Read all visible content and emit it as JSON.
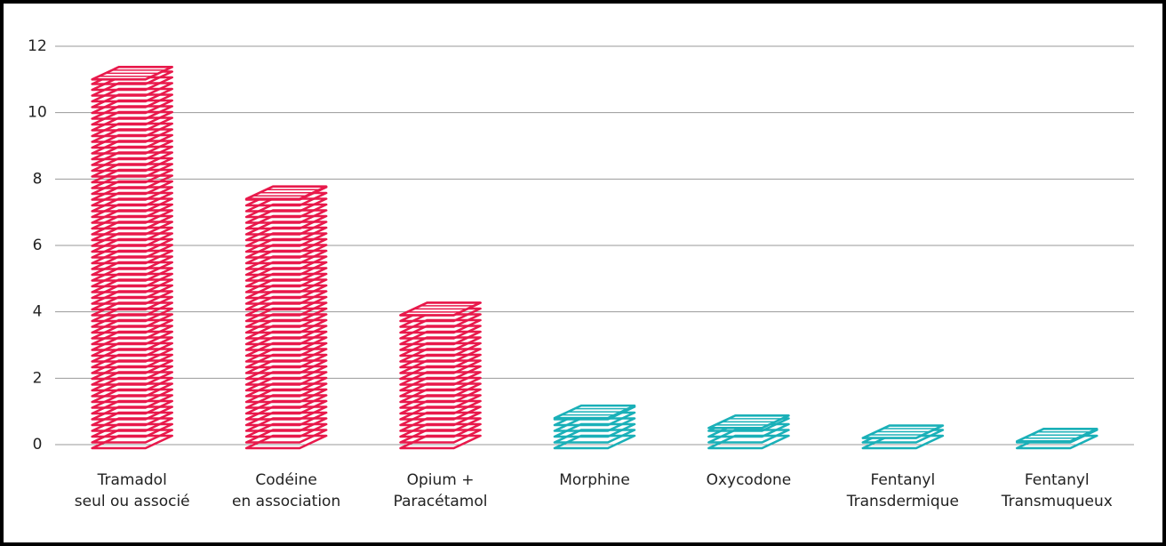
{
  "chart_data": {
    "type": "bar",
    "categories": [
      "Tramadol\nseul ou associé",
      "Codéine\nen association",
      "Opium +\nParacétamol",
      "Morphine",
      "Oxycodone",
      "Fentanyl\nTransdermique",
      "Fentanyl\nTransmuqueux"
    ],
    "values": [
      11,
      7.4,
      3.9,
      0.8,
      0.5,
      0.2,
      0.1
    ],
    "colors": [
      "#e8194b",
      "#e8194b",
      "#e8194b",
      "#1ab0b8",
      "#1ab0b8",
      "#1ab0b8",
      "#1ab0b8"
    ],
    "ylim": [
      0,
      12
    ],
    "yticks": [
      0,
      2,
      4,
      6,
      8,
      10,
      12
    ],
    "grid": true
  }
}
